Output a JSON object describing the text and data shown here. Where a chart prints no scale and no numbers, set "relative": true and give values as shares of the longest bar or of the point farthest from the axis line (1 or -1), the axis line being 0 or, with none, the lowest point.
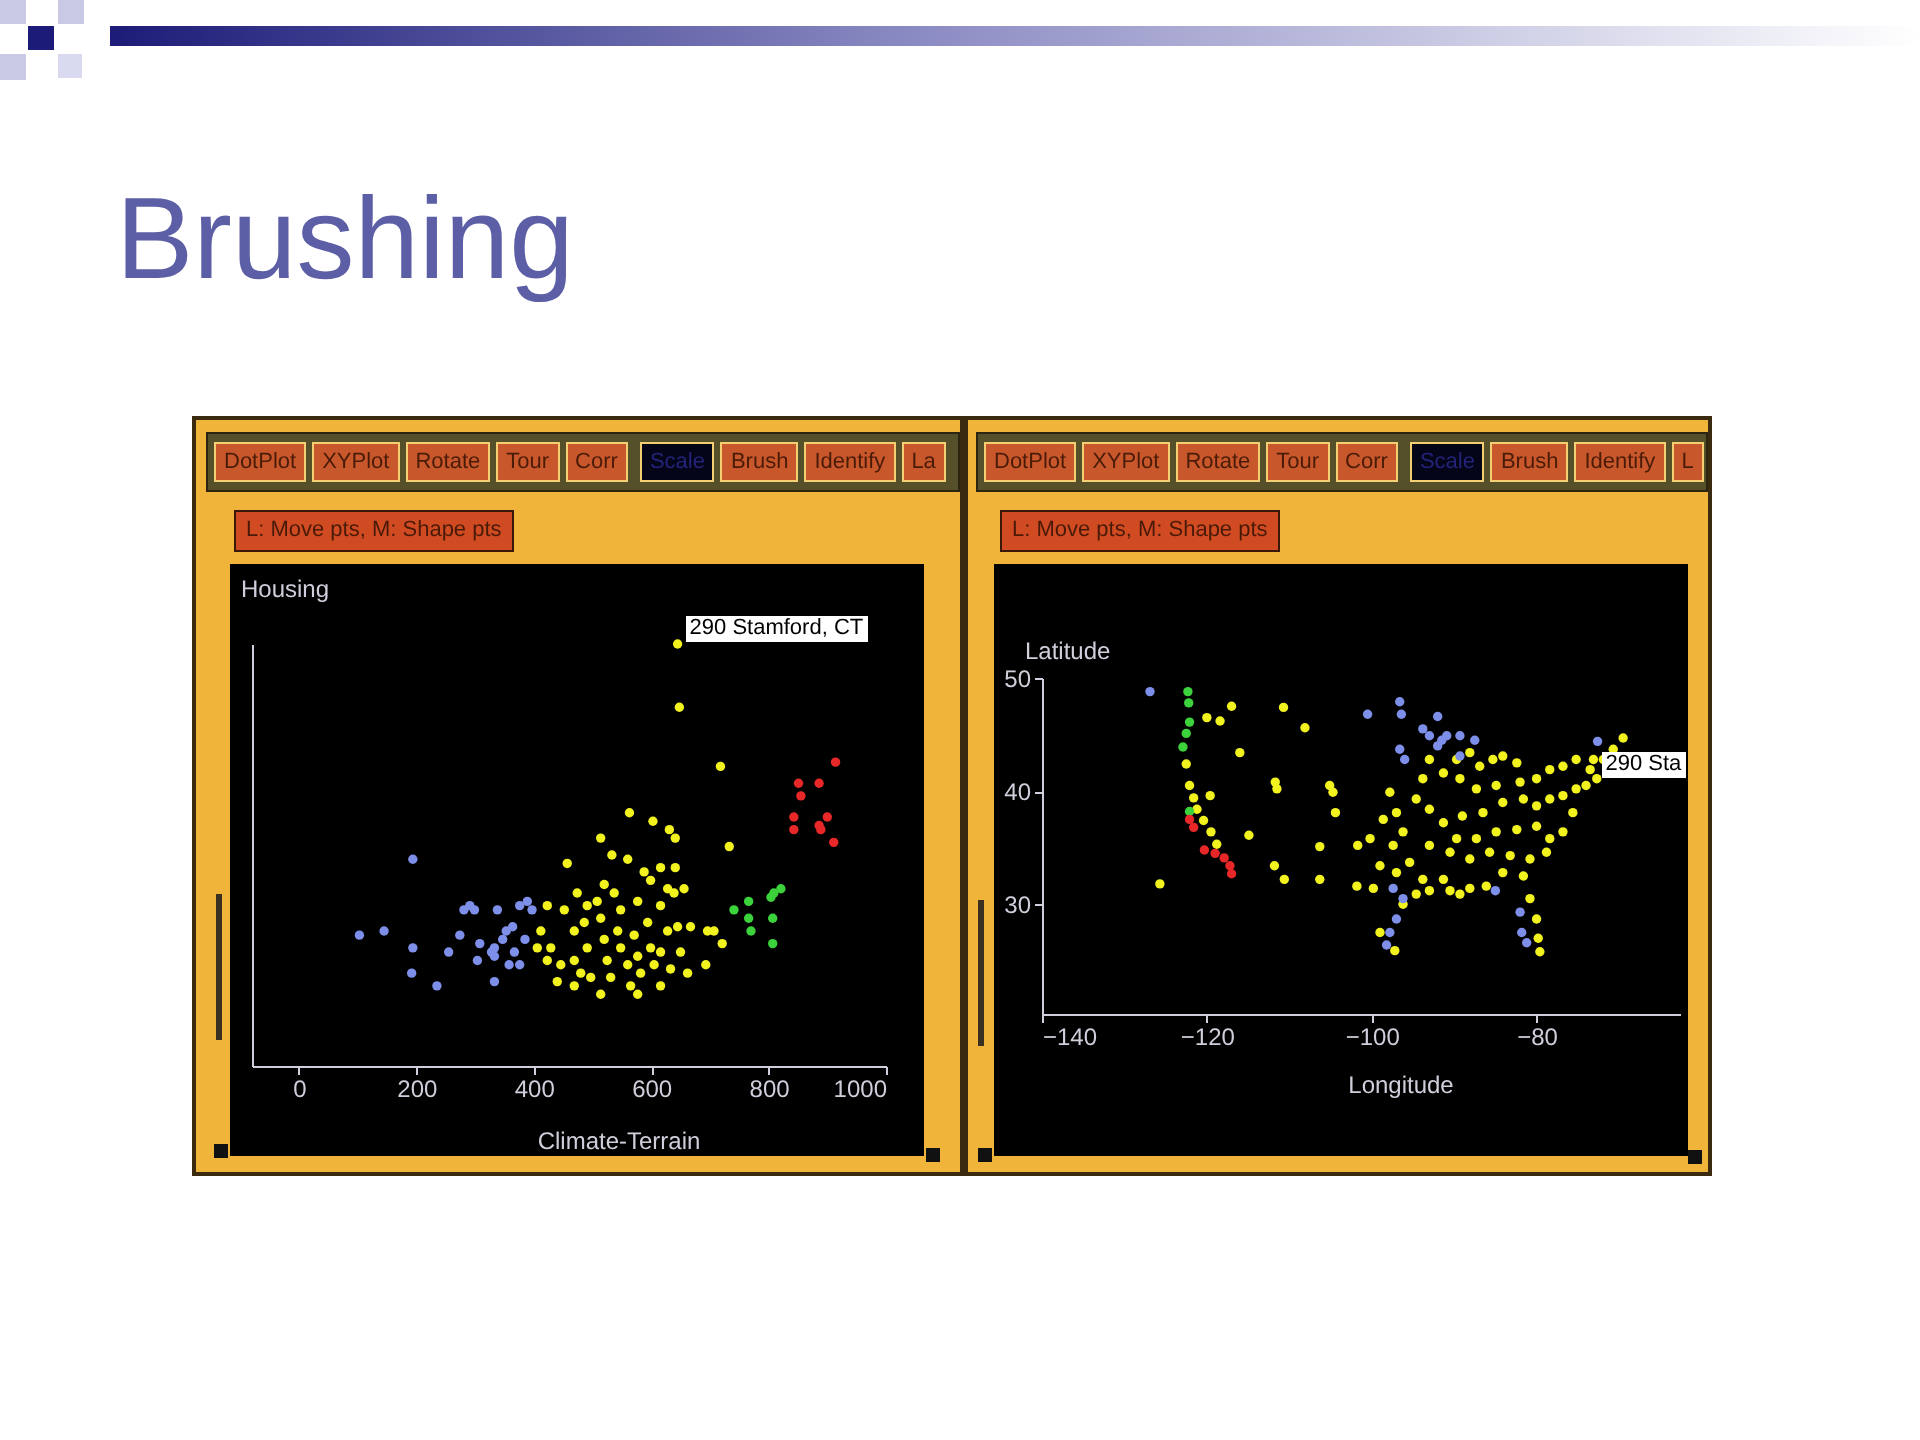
{
  "chart_data": [
    {
      "type": "scatter",
      "title": "Brushing",
      "xlabel": "Climate-Terrain",
      "ylabel": "Housing",
      "relative": true,
      "xlim": [
        -80,
        1000
      ],
      "xticks": [
        0,
        200,
        400,
        600,
        800,
        1000
      ],
      "marker": "circle",
      "annotations": [
        "DotPlot",
        "XYPlot",
        "Rotate",
        "Tour",
        "Corr",
        "Scale",
        "Brush",
        "Identify",
        "La",
        "L: Move pts, M: Shape pts",
        {
          "text": "290 Stamford, CT",
          "x": 645,
          "y": 1.0
        }
      ],
      "series": [
        {
          "color": "#f2f21e",
          "x": [
            645,
            648,
            718,
            733,
            563,
            603,
            631,
            641,
            514,
            457,
            533,
            560,
            616,
            641,
            588,
            520,
            474,
            628,
            577,
            423,
            491,
            548,
            616,
            412,
            429,
            446,
            440,
            469,
            469,
            486,
            491,
            497,
            514,
            520,
            525,
            531,
            543,
            548,
            560,
            565,
            571,
            577,
            582,
            594,
            599,
            605,
            616,
            628,
            633,
            645,
            650,
            662,
            667,
            693,
            707,
            721,
            469,
            514,
            577,
            508,
            452,
            423,
            406,
            537,
            639,
            599,
            480,
            616,
            656,
            696
          ],
          "values": [
            1.0,
            0.85,
            0.71,
            0.52,
            0.6,
            0.58,
            0.56,
            0.54,
            0.54,
            0.48,
            0.5,
            0.49,
            0.47,
            0.47,
            0.46,
            0.43,
            0.41,
            0.42,
            0.39,
            0.38,
            0.38,
            0.37,
            0.38,
            0.32,
            0.28,
            0.24,
            0.2,
            0.32,
            0.25,
            0.34,
            0.28,
            0.21,
            0.35,
            0.3,
            0.25,
            0.21,
            0.32,
            0.28,
            0.24,
            0.19,
            0.31,
            0.26,
            0.22,
            0.34,
            0.28,
            0.24,
            0.27,
            0.32,
            0.23,
            0.33,
            0.27,
            0.22,
            0.33,
            0.24,
            0.32,
            0.29,
            0.19,
            0.17,
            0.17,
            0.39,
            0.37,
            0.25,
            0.28,
            0.41,
            0.41,
            0.44,
            0.22,
            0.19,
            0.42,
            0.32
          ]
        },
        {
          "color": "#7d8fe8",
          "x": [
            194,
            103,
            145,
            194,
            192,
            235,
            255,
            274,
            291,
            299,
            308,
            304,
            333,
            338,
            333,
            333,
            347,
            353,
            364,
            367,
            376,
            376,
            389,
            385,
            397,
            358,
            328,
            281
          ],
          "values": [
            0.49,
            0.31,
            0.32,
            0.28,
            0.22,
            0.19,
            0.27,
            0.31,
            0.38,
            0.37,
            0.29,
            0.25,
            0.2,
            0.37,
            0.26,
            0.28,
            0.3,
            0.32,
            0.33,
            0.27,
            0.24,
            0.38,
            0.39,
            0.3,
            0.37,
            0.24,
            0.27,
            0.37
          ]
        },
        {
          "color": "#3cd23c",
          "x": [
            741,
            766,
            766,
            770,
            807,
            807,
            809,
            821,
            804
          ],
          "values": [
            0.37,
            0.39,
            0.35,
            0.32,
            0.35,
            0.29,
            0.41,
            0.42,
            0.4
          ]
        },
        {
          "color": "#e82828",
          "x": [
            914,
            851,
            886,
            855,
            843,
            843,
            886,
            900,
            889,
            911
          ],
          "values": [
            0.72,
            0.67,
            0.67,
            0.64,
            0.59,
            0.56,
            0.57,
            0.59,
            0.56,
            0.53
          ]
        }
      ]
    },
    {
      "type": "scatter",
      "xlabel": "Longitude",
      "ylabel": "Latitude",
      "xlim": [
        -140,
        -62.6
      ],
      "xticks": [
        -140,
        -120,
        -100,
        -80
      ],
      "ylim": [
        20.3,
        50
      ],
      "yticks": [
        30,
        40,
        50
      ],
      "marker": "circle",
      "annotations": [
        "DotPlot",
        "XYPlot",
        "Rotate",
        "Tour",
        "Corr",
        "Scale",
        "Brush",
        "Identify",
        "L",
        "L: Move pts, M: Shape pts",
        {
          "text": "290 Sta",
          "x": -73.1,
          "y": 42.8
        }
      ],
      "series": [
        {
          "color": "#f2f21e",
          "x": [
            -122.5,
            -122.1,
            -121.6,
            -121.2,
            -120.4,
            -119.5,
            -118.8,
            -119.6,
            -117.0,
            -120.0,
            -118.4,
            -116.0,
            -114.9,
            -125.7,
            -111.7,
            -111.5,
            -110.7,
            -108.1,
            -111.8,
            -110.6,
            -106.3,
            -106.3,
            -105.1,
            -104.7,
            -104.4,
            -101.7,
            -101.8,
            -99.8,
            -99.0,
            -97.2,
            -94.6,
            -93.0,
            -97.0,
            -96.2,
            -97.4,
            -93.0,
            -95.4,
            -93.8,
            -97.0,
            -91.3,
            -94.6,
            -93.0,
            -90.5,
            -88.1,
            -86.1,
            -89.3,
            -96.2,
            -89.7,
            -88.1,
            -86.9,
            -85.3,
            -84.1,
            -82.4,
            -89.3,
            -87.3,
            -84.9,
            -82.0,
            -80.0,
            -78.4,
            -76.8,
            -75.2,
            -73.5,
            -73.1,
            -74.0,
            -75.2,
            -76.8,
            -78.4,
            -80.0,
            -81.6,
            -84.1,
            -86.5,
            -89.0,
            -91.3,
            -89.7,
            -87.3,
            -84.9,
            -82.4,
            -80.0,
            -78.4,
            -76.8,
            -78.8,
            -80.8,
            -83.2,
            -85.7,
            -88.1,
            -90.5,
            -84.1,
            -81.6,
            -80.0,
            -79.8,
            -79.6,
            -80.8,
            -69.5,
            -70.7,
            -71.9,
            -72.7,
            -75.6,
            -93.0,
            -91.3,
            -93.8,
            -97.8,
            -98.6,
            -99.0,
            -100.2
          ],
          "values": [
            42.4,
            40.5,
            39.4,
            38.4,
            37.4,
            36.4,
            35.3,
            39.6,
            47.5,
            46.5,
            46.2,
            43.4,
            36.1,
            31.8,
            40.8,
            40.2,
            47.4,
            45.6,
            33.4,
            32.2,
            35.1,
            32.2,
            40.5,
            39.9,
            38.1,
            35.2,
            31.6,
            31.4,
            27.5,
            25.9,
            39.3,
            38.4,
            38.1,
            36.4,
            35.2,
            35.2,
            33.7,
            32.2,
            32.8,
            32.2,
            30.9,
            31.2,
            31.2,
            31.4,
            31.6,
            30.9,
            30.0,
            42.8,
            43.4,
            42.2,
            42.8,
            43.1,
            42.5,
            41.1,
            40.2,
            40.5,
            40.8,
            41.1,
            41.9,
            42.2,
            42.8,
            41.9,
            42.8,
            40.5,
            40.2,
            39.6,
            39.3,
            38.7,
            39.3,
            39.0,
            38.1,
            37.8,
            37.2,
            35.8,
            35.8,
            36.4,
            36.6,
            36.9,
            35.8,
            36.4,
            34.6,
            34.0,
            34.3,
            34.6,
            34.0,
            34.6,
            32.8,
            32.5,
            28.7,
            27.0,
            25.8,
            30.5,
            44.7,
            43.7,
            42.8,
            41.1,
            38.1,
            42.8,
            41.6,
            41.1,
            39.9,
            37.5,
            33.4,
            35.8
          ]
        },
        {
          "color": "#7d8fe8",
          "x": [
            -126.9,
            -100.5,
            -96.6,
            -96.4,
            -96.6,
            -96.0,
            -93.8,
            -93.0,
            -92.0,
            -91.5,
            -90.9,
            -89.3,
            -89.3,
            -87.5,
            -72.6,
            -97.4,
            -96.2,
            -97.0,
            -97.8,
            -98.2,
            -85.0,
            -82.0,
            -81.8,
            -81.2,
            -92.0
          ],
          "values": [
            48.8,
            46.8,
            47.9,
            46.8,
            43.7,
            42.8,
            45.5,
            44.9,
            46.6,
            44.5,
            44.9,
            44.9,
            43.1,
            44.5,
            44.4,
            31.4,
            30.5,
            28.7,
            27.5,
            26.4,
            31.2,
            29.3,
            27.5,
            26.6,
            44.0
          ]
        },
        {
          "color": "#3cd23c",
          "x": [
            -122.3,
            -122.2,
            -122.1,
            -122.5,
            -122.9,
            -122.1
          ],
          "values": [
            48.8,
            47.8,
            46.1,
            45.1,
            43.9,
            38.2
          ]
        },
        {
          "color": "#e82828",
          "x": [
            -122.1,
            -121.6,
            -120.3,
            -119.0,
            -117.9,
            -117.2,
            -117.0
          ],
          "values": [
            37.5,
            36.8,
            34.8,
            34.5,
            34.1,
            33.4,
            32.7
          ]
        }
      ]
    }
  ]
}
